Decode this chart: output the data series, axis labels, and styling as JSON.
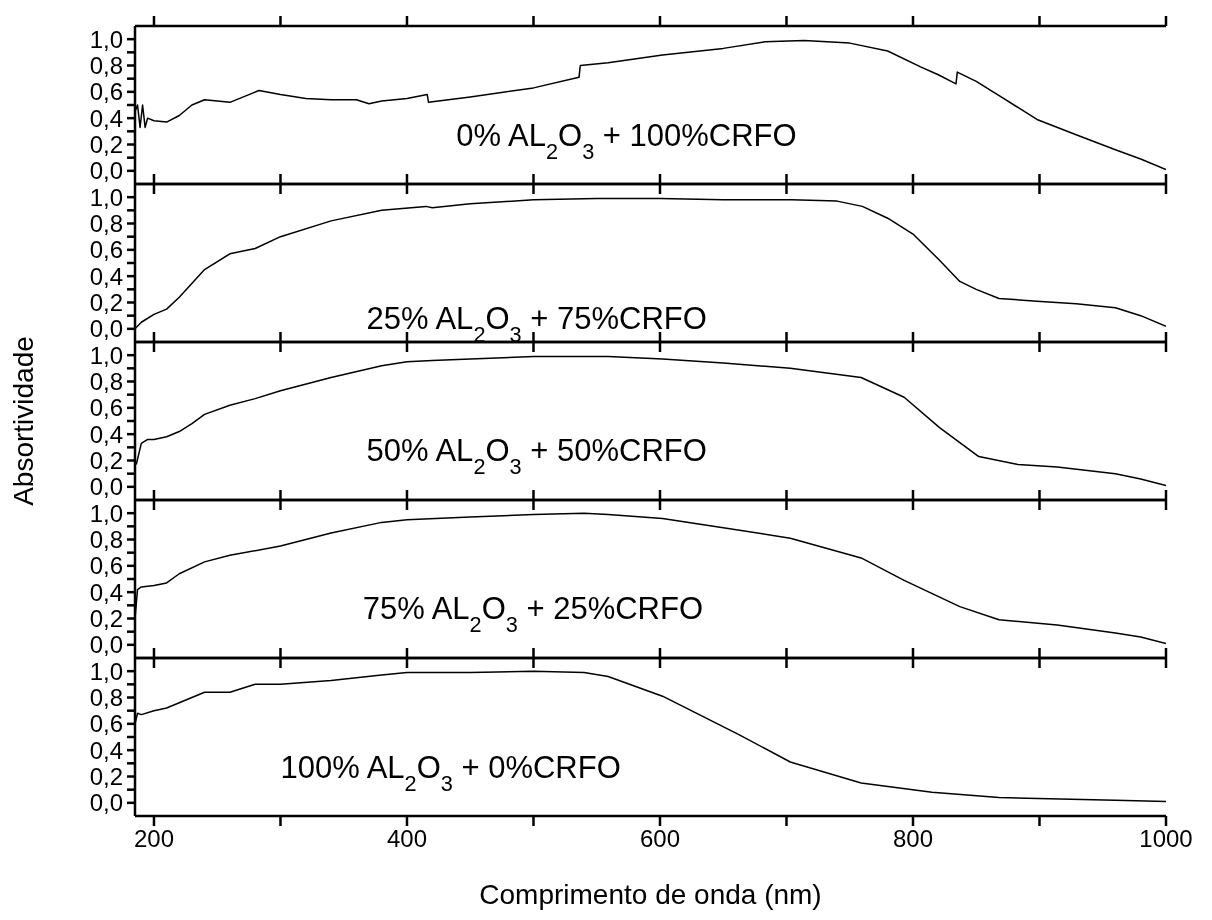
{
  "chart_data": [
    {
      "type": "line",
      "x": [
        185,
        187,
        189,
        191,
        193,
        195,
        200,
        210,
        220,
        230,
        240,
        260,
        283,
        300,
        320,
        340,
        360,
        370,
        380,
        400,
        416,
        417,
        450,
        500,
        536,
        537,
        559,
        602,
        650,
        683,
        714,
        750,
        780,
        806,
        820,
        834,
        835,
        850,
        870,
        898,
        930,
        960,
        980,
        1000
      ],
      "series": [
        {
          "color": "#000000",
          "values": [
            0.45,
            0.5,
            0.33,
            0.5,
            0.33,
            0.4,
            0.38,
            0.37,
            0.42,
            0.5,
            0.54,
            0.52,
            0.61,
            0.58,
            0.55,
            0.54,
            0.54,
            0.51,
            0.53,
            0.55,
            0.58,
            0.52,
            0.56,
            0.63,
            0.71,
            0.8,
            0.82,
            0.88,
            0.93,
            0.98,
            0.99,
            0.97,
            0.91,
            0.79,
            0.73,
            0.66,
            0.75,
            0.68,
            0.56,
            0.39,
            0.27,
            0.16,
            0.09,
            0.01
          ]
        }
      ],
      "xlim": [
        185,
        1000
      ],
      "xticks": [
        200,
        {
          "value": 300,
          "label": null
        },
        400,
        {
          "value": 500,
          "label": null
        },
        600,
        {
          "value": 700,
          "label": null
        },
        800,
        {
          "value": 900,
          "label": null
        },
        1000
      ],
      "ylim": [
        -0.1,
        1.1
      ],
      "yticks": [
        {
          "value": 0,
          "label": "0,0"
        },
        {
          "value": 0.1,
          "label": null
        },
        {
          "value": 0.2,
          "label": "0,2"
        },
        {
          "value": 0.3,
          "label": null
        },
        {
          "value": 0.4,
          "label": "0,4"
        },
        {
          "value": 0.5,
          "label": null
        },
        {
          "value": 0.6,
          "label": "0,6"
        },
        {
          "value": 0.7,
          "label": null
        },
        {
          "value": 0.8,
          "label": "0,8"
        },
        {
          "value": 0.9,
          "label": null
        },
        {
          "value": 1,
          "label": "1,0"
        }
      ],
      "tick_labels": "y",
      "annotations": [
        "0% AL$_{2}$O$_{3}$ + 100%CRFO"
      ]
    },
    {
      "type": "line",
      "x": [
        185,
        190,
        200,
        210,
        220,
        240,
        260,
        280,
        300,
        340,
        380,
        415,
        420,
        450,
        500,
        550,
        600,
        650,
        704,
        740,
        760,
        780,
        800,
        820,
        837,
        850,
        868,
        898,
        929,
        960,
        980,
        1000
      ],
      "series": [
        {
          "color": "#000000",
          "values": [
            0.0,
            0.05,
            0.11,
            0.15,
            0.24,
            0.45,
            0.57,
            0.61,
            0.7,
            0.82,
            0.9,
            0.93,
            0.92,
            0.95,
            0.98,
            0.99,
            0.99,
            0.98,
            0.98,
            0.97,
            0.93,
            0.84,
            0.72,
            0.53,
            0.36,
            0.3,
            0.23,
            0.21,
            0.19,
            0.16,
            0.1,
            0.02
          ]
        }
      ],
      "xlim": [
        185,
        1000
      ],
      "xticks": [
        200,
        {
          "value": 300,
          "label": null
        },
        400,
        {
          "value": 500,
          "label": null
        },
        600,
        {
          "value": 700,
          "label": null
        },
        800,
        {
          "value": 900,
          "label": null
        },
        1000
      ],
      "ylim": [
        -0.1,
        1.1
      ],
      "yticks": [
        {
          "value": 0,
          "label": "0,0"
        },
        {
          "value": 0.1,
          "label": null
        },
        {
          "value": 0.2,
          "label": "0,2"
        },
        {
          "value": 0.3,
          "label": null
        },
        {
          "value": 0.4,
          "label": "0,4"
        },
        {
          "value": 0.5,
          "label": null
        },
        {
          "value": 0.6,
          "label": "0,6"
        },
        {
          "value": 0.7,
          "label": null
        },
        {
          "value": 0.8,
          "label": "0,8"
        },
        {
          "value": 0.9,
          "label": null
        },
        {
          "value": 1,
          "label": "1,0"
        }
      ],
      "tick_labels": "y",
      "annotations": [
        "25% AL$_{2}$O$_{3}$ + 75%CRFO"
      ]
    },
    {
      "type": "line",
      "x": [
        186,
        190,
        195,
        200,
        210,
        220,
        230,
        240,
        260,
        280,
        300,
        340,
        380,
        400,
        420,
        450,
        500,
        559,
        602,
        650,
        703,
        759,
        793,
        821,
        852,
        883,
        914,
        960,
        980,
        1000
      ],
      "series": [
        {
          "color": "#000000",
          "values": [
            0.17,
            0.33,
            0.36,
            0.36,
            0.38,
            0.42,
            0.48,
            0.55,
            0.62,
            0.67,
            0.73,
            0.83,
            0.92,
            0.95,
            0.96,
            0.97,
            0.99,
            0.99,
            0.97,
            0.94,
            0.9,
            0.83,
            0.68,
            0.45,
            0.23,
            0.17,
            0.15,
            0.1,
            0.06,
            0.01
          ]
        }
      ],
      "xlim": [
        185,
        1000
      ],
      "xticks": [
        200,
        {
          "value": 300,
          "label": null
        },
        400,
        {
          "value": 500,
          "label": null
        },
        600,
        {
          "value": 700,
          "label": null
        },
        800,
        {
          "value": 900,
          "label": null
        },
        1000
      ],
      "ylim": [
        -0.1,
        1.1
      ],
      "yticks": [
        {
          "value": 0,
          "label": "0,0"
        },
        {
          "value": 0.1,
          "label": null
        },
        {
          "value": 0.2,
          "label": "0,2"
        },
        {
          "value": 0.3,
          "label": null
        },
        {
          "value": 0.4,
          "label": "0,4"
        },
        {
          "value": 0.5,
          "label": null
        },
        {
          "value": 0.6,
          "label": "0,6"
        },
        {
          "value": 0.7,
          "label": null
        },
        {
          "value": 0.8,
          "label": "0,8"
        },
        {
          "value": 0.9,
          "label": null
        },
        {
          "value": 1,
          "label": "1,0"
        }
      ],
      "tick_labels": "y",
      "ylabel": "Absortividade",
      "annotations": [
        "50% AL$_{2}$O$_{3}$ + 50%CRFO"
      ]
    },
    {
      "type": "line",
      "x": [
        185,
        187,
        190,
        200,
        210,
        220,
        240,
        260,
        300,
        340,
        380,
        400,
        450,
        500,
        540,
        559,
        602,
        650,
        703,
        759,
        793,
        837,
        868,
        914,
        960,
        980,
        1000
      ],
      "series": [
        {
          "color": "#000000",
          "values": [
            0.2,
            0.42,
            0.44,
            0.45,
            0.47,
            0.54,
            0.63,
            0.68,
            0.75,
            0.85,
            0.93,
            0.95,
            0.97,
            0.99,
            1.0,
            0.99,
            0.96,
            0.89,
            0.81,
            0.66,
            0.49,
            0.29,
            0.19,
            0.15,
            0.09,
            0.06,
            0.01
          ]
        }
      ],
      "xlim": [
        185,
        1000
      ],
      "xticks": [
        200,
        {
          "value": 300,
          "label": null
        },
        400,
        {
          "value": 500,
          "label": null
        },
        600,
        {
          "value": 700,
          "label": null
        },
        800,
        {
          "value": 900,
          "label": null
        },
        1000
      ],
      "ylim": [
        -0.1,
        1.1
      ],
      "yticks": [
        {
          "value": 0,
          "label": "0,0"
        },
        {
          "value": 0.1,
          "label": null
        },
        {
          "value": 0.2,
          "label": "0,2"
        },
        {
          "value": 0.3,
          "label": null
        },
        {
          "value": 0.4,
          "label": "0,4"
        },
        {
          "value": 0.5,
          "label": null
        },
        {
          "value": 0.6,
          "label": "0,6"
        },
        {
          "value": 0.7,
          "label": null
        },
        {
          "value": 0.8,
          "label": "0,8"
        },
        {
          "value": 0.9,
          "label": null
        },
        {
          "value": 1,
          "label": "1,0"
        }
      ],
      "tick_labels": "y",
      "annotations": [
        "75% AL$_{2}$O$_{3}$ + 25%CRFO"
      ]
    },
    {
      "type": "line",
      "x": [
        185,
        187,
        190,
        200,
        210,
        220,
        240,
        260,
        280,
        300,
        340,
        380,
        400,
        450,
        500,
        540,
        559,
        602,
        662,
        703,
        759,
        815,
        868,
        960,
        1000
      ],
      "series": [
        {
          "color": "#000000",
          "values": [
            0.6,
            0.68,
            0.67,
            0.7,
            0.72,
            0.76,
            0.84,
            0.84,
            0.9,
            0.9,
            0.93,
            0.97,
            0.99,
            0.99,
            1.0,
            0.99,
            0.96,
            0.81,
            0.52,
            0.31,
            0.15,
            0.08,
            0.04,
            0.02,
            0.01
          ]
        }
      ],
      "xlim": [
        185,
        1000
      ],
      "xticks": [
        200,
        {
          "value": 300,
          "label": null
        },
        400,
        {
          "value": 500,
          "label": null
        },
        600,
        {
          "value": 700,
          "label": null
        },
        800,
        {
          "value": 900,
          "label": null
        },
        1000
      ],
      "ylim": [
        -0.1,
        1.1
      ],
      "yticks": [
        {
          "value": 0,
          "label": "0,0"
        },
        {
          "value": 0.1,
          "label": null
        },
        {
          "value": 0.2,
          "label": "0,2"
        },
        {
          "value": 0.3,
          "label": null
        },
        {
          "value": 0.4,
          "label": "0,4"
        },
        {
          "value": 0.5,
          "label": null
        },
        {
          "value": 0.6,
          "label": "0,6"
        },
        {
          "value": 0.7,
          "label": null
        },
        {
          "value": 0.8,
          "label": "0,8"
        },
        {
          "value": 0.9,
          "label": null
        },
        {
          "value": 1,
          "label": "1,0"
        }
      ],
      "xlabel": "Comprimento de onda (nm)",
      "annotations": [
        "100% AL$_{2}$O$_{3}$ + 0%CRFO"
      ]
    }
  ]
}
